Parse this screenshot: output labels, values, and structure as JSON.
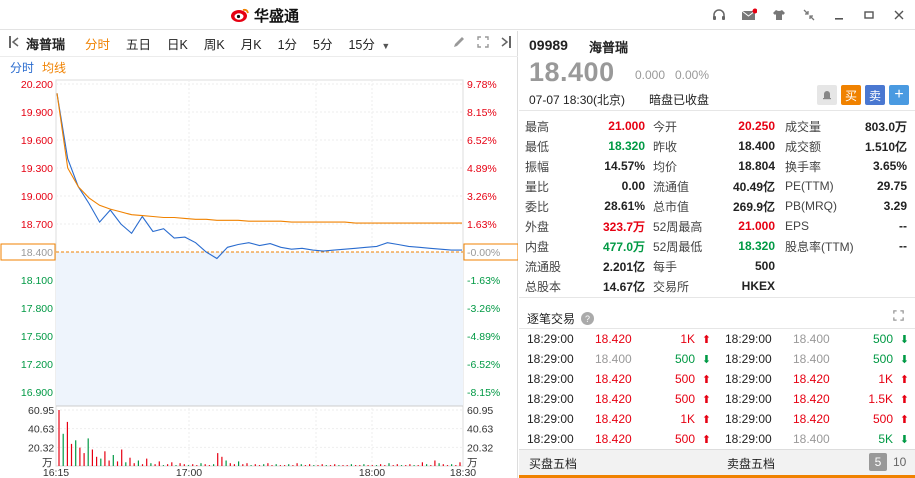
{
  "app": {
    "brand": "华盛通",
    "controls": [
      "headset-icon",
      "mail-icon",
      "shirt-icon",
      "shrink-icon",
      "minimize-icon",
      "maximize-icon",
      "close-icon"
    ]
  },
  "toolbar": {
    "stock_name": "海普瑞",
    "periods": [
      "分时",
      "五日",
      "日K",
      "周K",
      "月K",
      "1分",
      "5分",
      "15分"
    ],
    "active_period": "分时"
  },
  "subtabs": {
    "fs": "分时",
    "avg": "均线"
  },
  "chart_data": {
    "type": "line",
    "price_axis_left": [
      "20.200",
      "19.900",
      "19.600",
      "19.300",
      "19.000",
      "18.700",
      "18.400",
      "18.100",
      "17.800",
      "17.500",
      "17.200",
      "16.900"
    ],
    "pct_axis_right": [
      "9.78%",
      "8.15%",
      "6.52%",
      "4.89%",
      "3.26%",
      "1.63%",
      "-0.00%",
      "-1.63%",
      "-3.26%",
      "-4.89%",
      "-6.52%",
      "-8.15%"
    ],
    "ylim": [
      16.75,
      20.2
    ],
    "prev_close": 18.4,
    "vol_axis_left": [
      "60.95",
      "40.63",
      "20.32",
      "万"
    ],
    "vol_axis_right": [
      "60.95",
      "40.63",
      "20.32",
      "万"
    ],
    "vol_max": 60.95,
    "time_labels": [
      "16:15",
      "17:00",
      "18:00",
      "18:30"
    ],
    "series": [
      {
        "values": [
          20.1,
          19.4,
          19.1,
          18.92,
          18.72,
          18.85,
          18.7,
          18.6,
          18.78,
          18.62,
          18.65,
          18.55,
          18.56,
          18.5,
          18.4,
          18.33,
          18.45,
          18.48,
          18.5,
          18.47,
          18.49,
          18.45,
          18.43,
          18.44,
          18.42,
          18.41,
          18.42,
          18.43,
          18.44,
          18.45,
          18.46,
          18.5,
          18.48,
          18.46,
          18.45,
          18.44,
          18.43,
          18.42,
          18.42
        ]
      },
      {
        "values": [
          20.1,
          19.3,
          19.1,
          18.98,
          18.9,
          18.86,
          18.83,
          18.8,
          18.79,
          18.78,
          18.77,
          18.77,
          18.76,
          18.75,
          18.75,
          18.74,
          18.74,
          18.74,
          18.73,
          18.73,
          18.73,
          18.73,
          18.72,
          18.72,
          18.72,
          18.72,
          18.72,
          18.72,
          18.71,
          18.71,
          18.71,
          18.71,
          18.71,
          18.71,
          18.71,
          18.71,
          18.71,
          18.71,
          18.71
        ]
      }
    ],
    "volumes": [
      60.9,
      35,
      48,
      24,
      28,
      20,
      14,
      30,
      18,
      10,
      8,
      16,
      6,
      12,
      5,
      18,
      4,
      9,
      3,
      6,
      2,
      8,
      3,
      2,
      5,
      1,
      2,
      4,
      1,
      3,
      2,
      1,
      2,
      1,
      3,
      2,
      1,
      2,
      14,
      10,
      6,
      3,
      2,
      5,
      2,
      3,
      1,
      2,
      1,
      2,
      3,
      1,
      2,
      1,
      1,
      2,
      1,
      3,
      2,
      1,
      2,
      1,
      1,
      2,
      1,
      1,
      2,
      1,
      1,
      1,
      2,
      1,
      1,
      2,
      1,
      1,
      1,
      2,
      1,
      3,
      1,
      2,
      1,
      1,
      2,
      1,
      1,
      4,
      2,
      1,
      6,
      3,
      2,
      1,
      2,
      1,
      4
    ]
  },
  "quote": {
    "code": "09989",
    "name": "海普瑞",
    "price": "18.400",
    "change": "0.000",
    "change_pct": "0.00%",
    "time": "07-07  18:30(北京)",
    "status": "暗盘已收盘",
    "buy": "买",
    "sell": "卖"
  },
  "stats": {
    "col1": [
      {
        "label": "最高",
        "value": "21.000",
        "color": "red"
      },
      {
        "label": "最低",
        "value": "18.320",
        "color": "green"
      },
      {
        "label": "振幅",
        "value": "14.57%",
        "color": ""
      },
      {
        "label": "量比",
        "value": "0.00",
        "color": ""
      },
      {
        "label": "委比",
        "value": "28.61%",
        "color": ""
      },
      {
        "label": "外盘",
        "value": "323.7万",
        "color": "red"
      },
      {
        "label": "内盘",
        "value": "477.0万",
        "color": "green"
      },
      {
        "label": "流通股",
        "value": "2.201亿",
        "color": ""
      },
      {
        "label": "总股本",
        "value": "14.67亿",
        "color": ""
      }
    ],
    "col2": [
      {
        "label": "今开",
        "value": "20.250",
        "color": "red"
      },
      {
        "label": "昨收",
        "value": "18.400",
        "color": ""
      },
      {
        "label": "均价",
        "value": "18.804",
        "color": ""
      },
      {
        "label": "流通值",
        "value": "40.49亿",
        "color": ""
      },
      {
        "label": "总市值",
        "value": "269.9亿",
        "color": ""
      },
      {
        "label": "52周最高",
        "value": "21.000",
        "color": "red"
      },
      {
        "label": "52周最低",
        "value": "18.320",
        "color": "green"
      },
      {
        "label": "每手",
        "value": "500",
        "color": ""
      },
      {
        "label": "交易所",
        "value": "HKEX",
        "color": ""
      }
    ],
    "col3": [
      {
        "label": "成交量",
        "value": "803.0万",
        "color": ""
      },
      {
        "label": "成交额",
        "value": "1.510亿",
        "color": ""
      },
      {
        "label": "换手率",
        "value": "3.65%",
        "color": ""
      },
      {
        "label": "PE(TTM)",
        "value": "29.75",
        "color": ""
      },
      {
        "label": "PB(MRQ)",
        "value": "3.29",
        "color": ""
      },
      {
        "label": "EPS",
        "value": "--",
        "color": ""
      },
      {
        "label": "股息率(TTM)",
        "value": "--",
        "color": ""
      }
    ]
  },
  "ticks": {
    "title": "逐笔交易",
    "left": [
      {
        "time": "18:29:00",
        "price": "18.420",
        "vol": "1K",
        "dir": "up"
      },
      {
        "time": "18:29:00",
        "price": "18.400",
        "vol": "500",
        "dir": "down"
      },
      {
        "time": "18:29:00",
        "price": "18.420",
        "vol": "500",
        "dir": "up"
      },
      {
        "time": "18:29:00",
        "price": "18.420",
        "vol": "500",
        "dir": "up"
      },
      {
        "time": "18:29:00",
        "price": "18.420",
        "vol": "1K",
        "dir": "up"
      },
      {
        "time": "18:29:00",
        "price": "18.420",
        "vol": "500",
        "dir": "up"
      }
    ],
    "right": [
      {
        "time": "18:29:00",
        "price": "18.400",
        "vol": "500",
        "dir": "down"
      },
      {
        "time": "18:29:00",
        "price": "18.400",
        "vol": "500",
        "dir": "down"
      },
      {
        "time": "18:29:00",
        "price": "18.420",
        "vol": "1K",
        "dir": "up"
      },
      {
        "time": "18:29:00",
        "price": "18.420",
        "vol": "1.5K",
        "dir": "up"
      },
      {
        "time": "18:29:00",
        "price": "18.420",
        "vol": "500",
        "dir": "up"
      },
      {
        "time": "18:29:00",
        "price": "18.400",
        "vol": "5K",
        "dir": "down"
      }
    ]
  },
  "book": {
    "bid_label": "买盘五档",
    "ask_label": "卖盘五档",
    "five": "5",
    "ten": "10"
  },
  "colors": {
    "up": "#e60012",
    "down": "#009944",
    "accent": "#f08200",
    "price_line": "#2a6ccf",
    "avg_line": "#f08200"
  }
}
